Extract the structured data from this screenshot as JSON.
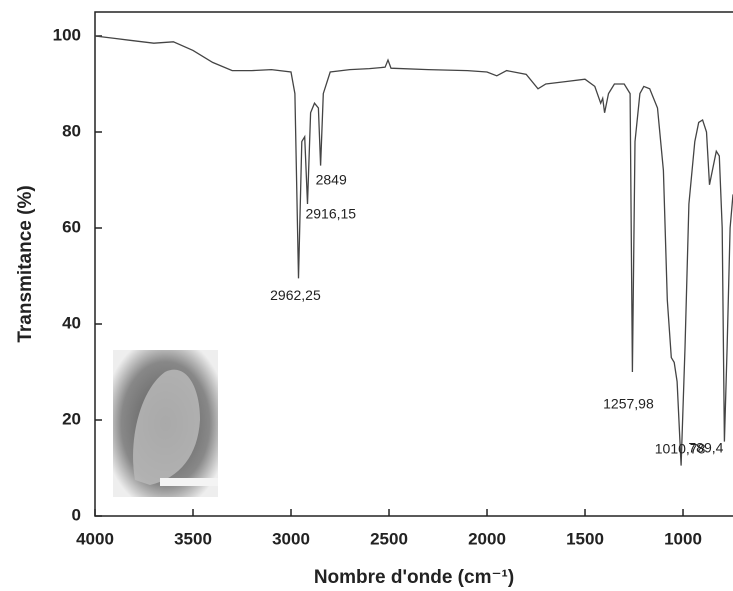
{
  "chart_data": {
    "type": "line",
    "x_label": "Nombre d'onde (cm⁻¹)",
    "y_label": "Transmitance (%)",
    "x": [
      4000,
      3900,
      3800,
      3700,
      3600,
      3500,
      3400,
      3300,
      3200,
      3100,
      3000,
      2980,
      2962,
      2945,
      2930,
      2916,
      2900,
      2880,
      2860,
      2849,
      2835,
      2800,
      2700,
      2600,
      2520,
      2505,
      2490,
      2300,
      2100,
      2000,
      1950,
      1900,
      1800,
      1740,
      1700,
      1600,
      1500,
      1450,
      1420,
      1410,
      1400,
      1380,
      1350,
      1300,
      1270,
      1258,
      1245,
      1220,
      1200,
      1170,
      1130,
      1100,
      1080,
      1060,
      1045,
      1030,
      1010,
      990,
      970,
      940,
      920,
      900,
      880,
      865,
      850,
      830,
      815,
      800,
      789,
      775,
      760,
      745
    ],
    "series": [
      {
        "color": "#444444",
        "values": [
          100,
          99.5,
          99,
          98.5,
          98.8,
          97,
          94.5,
          92.8,
          92.8,
          93,
          92.5,
          88,
          49.5,
          78,
          79,
          65,
          84,
          86,
          85,
          73,
          88,
          92.5,
          93,
          93.2,
          93.5,
          95,
          93.3,
          93,
          92.8,
          92.5,
          91.7,
          92.8,
          92,
          89,
          90,
          90.5,
          91,
          89.5,
          86,
          87,
          84,
          88,
          90,
          90,
          88,
          30,
          78,
          88,
          89.5,
          89,
          85,
          72,
          45,
          33,
          32,
          28,
          10.5,
          35,
          65,
          78,
          82,
          82.5,
          80,
          69,
          72,
          76,
          75,
          60,
          15.5,
          35,
          60,
          67
        ]
      }
    ],
    "annotations": [
      {
        "text": "2962,25",
        "x": 2962,
        "y": 49.5
      },
      {
        "text": "2916,15",
        "x": 2916,
        "y": 65
      },
      {
        "text": "2849",
        "x": 2849,
        "y": 73
      },
      {
        "text": "1257,98",
        "x": 1258,
        "y": 30
      },
      {
        "text": "1010,78",
        "x": 1010,
        "y": 10.5
      },
      {
        "text": "789,4",
        "x": 789,
        "y": 15.5
      }
    ],
    "xlim": [
      4000,
      745
    ],
    "ylim": [
      0,
      105
    ],
    "xticks": [
      4000,
      3500,
      3000,
      2500,
      2000,
      1500,
      1000
    ],
    "yticks": [
      0,
      20,
      40,
      60,
      80,
      100
    ]
  }
}
